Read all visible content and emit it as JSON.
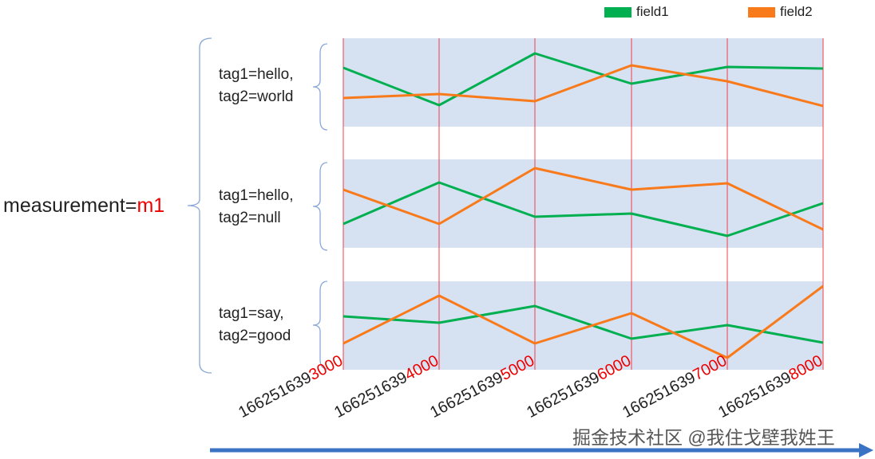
{
  "legend": [
    {
      "label": "field1",
      "color": "#00b050"
    },
    {
      "label": "field2",
      "color": "#f97a1a"
    }
  ],
  "measurement": {
    "prefix": "measurement=",
    "value": "m1"
  },
  "groups": [
    {
      "line1": "tag1=hello,",
      "line2": "tag2=world"
    },
    {
      "line1": "tag1=hello,",
      "line2": "tag2=null"
    },
    {
      "line1": "tag1=say,",
      "line2": "tag2=good"
    }
  ],
  "timestamps": [
    {
      "prefix": "166251639",
      "suffix": "3000"
    },
    {
      "prefix": "166251639",
      "suffix": "4000"
    },
    {
      "prefix": "166251639",
      "suffix": "5000"
    },
    {
      "prefix": "166251639",
      "suffix": "6000"
    },
    {
      "prefix": "166251639",
      "suffix": "7000"
    },
    {
      "prefix": "166251639",
      "suffix": "8000"
    }
  ],
  "colors": {
    "band": "#d6e1f2",
    "gridline": "#f0404a",
    "axis_arrow": "#3a72c4",
    "highlight": "#e00000"
  },
  "watermark": "掘金技术社区 @我住戈壁我姓王"
}
